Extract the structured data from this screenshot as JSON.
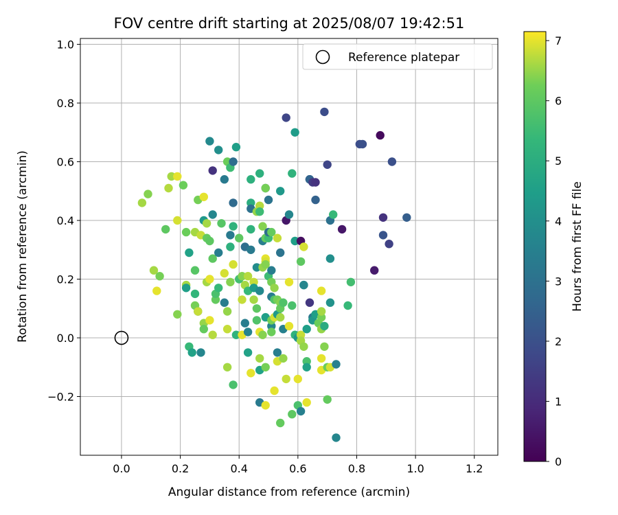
{
  "chart_data": {
    "type": "scatter",
    "title": "FOV centre drift starting at 2025/08/07 19:42:51",
    "xlabel": "Angular distance from reference (arcmin)",
    "ylabel": "Rotation from reference (arcmin)",
    "xlim": [
      -0.14,
      1.28
    ],
    "ylim": [
      -0.4,
      1.02
    ],
    "xticks": [
      "0.0",
      "0.2",
      "0.4",
      "0.6",
      "0.8",
      "1.0",
      "1.2"
    ],
    "xtick_values": [
      0,
      0.2,
      0.4,
      0.6,
      0.8,
      1.0,
      1.2
    ],
    "yticks": [
      "−0.2",
      "0.0",
      "0.2",
      "0.4",
      "0.6",
      "0.8",
      "1.0"
    ],
    "ytick_values": [
      -0.2,
      0,
      0.2,
      0.4,
      0.6,
      0.8,
      1.0
    ],
    "grid": true,
    "legend": {
      "label": "Reference platepar",
      "position": "top-right"
    },
    "reference_point": {
      "x": 0,
      "y": 0
    },
    "colorbar": {
      "label": "Hours from first FF file",
      "range": [
        0,
        7.15
      ],
      "ticks": [
        "0",
        "1",
        "2",
        "3",
        "4",
        "5",
        "6",
        "7"
      ],
      "tick_values": [
        0,
        1,
        2,
        3,
        4,
        5,
        6,
        7
      ],
      "colormap": "viridis"
    },
    "points": [
      [
        0.07,
        0.46,
        6.6
      ],
      [
        0.09,
        0.49,
        6.4
      ],
      [
        0.11,
        0.23,
        6.6
      ],
      [
        0.12,
        0.16,
        7.0
      ],
      [
        0.13,
        0.21,
        6.3
      ],
      [
        0.15,
        0.37,
        6.0
      ],
      [
        0.16,
        0.51,
        6.7
      ],
      [
        0.17,
        0.55,
        6.6
      ],
      [
        0.19,
        0.55,
        7.0
      ],
      [
        0.19,
        0.4,
        6.9
      ],
      [
        0.19,
        0.08,
        6.4
      ],
      [
        0.21,
        0.52,
        6.2
      ],
      [
        0.22,
        0.18,
        6.6
      ],
      [
        0.22,
        0.36,
        6.2
      ],
      [
        0.22,
        0.17,
        4.5
      ],
      [
        0.23,
        0.29,
        4.6
      ],
      [
        0.23,
        -0.03,
        5.4
      ],
      [
        0.24,
        -0.05,
        4.6
      ],
      [
        0.25,
        0.15,
        5.3
      ],
      [
        0.25,
        0.23,
        5.9
      ],
      [
        0.25,
        0.36,
        6.6
      ],
      [
        0.25,
        0.11,
        6.3
      ],
      [
        0.26,
        0.47,
        6.3
      ],
      [
        0.26,
        0.09,
        3.4
      ],
      [
        0.26,
        0.09,
        6.8
      ],
      [
        0.27,
        0.35,
        6.8
      ],
      [
        0.27,
        -0.05,
        3.7
      ],
      [
        0.28,
        0.05,
        6.5
      ],
      [
        0.28,
        0.03,
        6.1
      ],
      [
        0.28,
        0.4,
        4.3
      ],
      [
        0.28,
        0.48,
        7.0
      ],
      [
        0.29,
        0.39,
        6.6
      ],
      [
        0.29,
        0.34,
        6.1
      ],
      [
        0.29,
        0.19,
        6.6
      ],
      [
        0.3,
        0.67,
        3.8
      ],
      [
        0.3,
        0.33,
        6.0
      ],
      [
        0.3,
        0.2,
        7.0
      ],
      [
        0.3,
        0.06,
        7.0
      ],
      [
        0.31,
        0.42,
        3.7
      ],
      [
        0.31,
        0.01,
        6.7
      ],
      [
        0.31,
        0.27,
        6.0
      ],
      [
        0.31,
        0.57,
        1.2
      ],
      [
        0.32,
        0.13,
        6.1
      ],
      [
        0.32,
        0.15,
        5.7
      ],
      [
        0.33,
        0.64,
        4.0
      ],
      [
        0.33,
        0.17,
        5.4
      ],
      [
        0.33,
        0.29,
        3.4
      ],
      [
        0.34,
        0.39,
        5.9
      ],
      [
        0.35,
        0.12,
        3.4
      ],
      [
        0.35,
        0.54,
        3.3
      ],
      [
        0.35,
        0.22,
        6.9
      ],
      [
        0.36,
        0.6,
        6.2
      ],
      [
        0.36,
        0.09,
        6.5
      ],
      [
        0.36,
        0.03,
        6.8
      ],
      [
        0.36,
        -0.1,
        6.6
      ],
      [
        0.37,
        0.31,
        5.1
      ],
      [
        0.37,
        0.35,
        3.3
      ],
      [
        0.37,
        0.58,
        5.5
      ],
      [
        0.37,
        0.19,
        6.4
      ],
      [
        0.38,
        -0.16,
        5.7
      ],
      [
        0.38,
        0.25,
        6.9
      ],
      [
        0.38,
        0.46,
        2.8
      ],
      [
        0.38,
        0.38,
        5.2
      ],
      [
        0.38,
        0.6,
        2.9
      ],
      [
        0.39,
        0.65,
        4.5
      ],
      [
        0.39,
        0.01,
        5.2
      ],
      [
        0.4,
        0.34,
        6.0
      ],
      [
        0.4,
        0.2,
        5.6
      ],
      [
        0.41,
        0.01,
        7.0
      ],
      [
        0.41,
        0.21,
        6.4
      ],
      [
        0.41,
        0.13,
        6.8
      ],
      [
        0.42,
        0.18,
        6.6
      ],
      [
        0.42,
        0.05,
        3.4
      ],
      [
        0.42,
        0.31,
        2.9
      ],
      [
        0.43,
        0.02,
        3.6
      ],
      [
        0.43,
        -0.05,
        4.6
      ],
      [
        0.43,
        0.16,
        5.4
      ],
      [
        0.43,
        0.21,
        6.7
      ],
      [
        0.44,
        0.46,
        5.0
      ],
      [
        0.44,
        0.44,
        3.0
      ],
      [
        0.44,
        0.3,
        3.3
      ],
      [
        0.44,
        0.37,
        5.2
      ],
      [
        0.44,
        0.54,
        5.1
      ],
      [
        0.44,
        -0.12,
        7.0
      ],
      [
        0.45,
        0.19,
        6.8
      ],
      [
        0.45,
        0.13,
        6.6
      ],
      [
        0.45,
        0.17,
        4.4
      ],
      [
        0.46,
        0.1,
        6.0
      ],
      [
        0.46,
        0.06,
        5.8
      ],
      [
        0.46,
        0.43,
        6.5
      ],
      [
        0.46,
        0.24,
        3.9
      ],
      [
        0.47,
        0.45,
        6.7
      ],
      [
        0.47,
        0.02,
        7.0
      ],
      [
        0.47,
        -0.07,
        6.6
      ],
      [
        0.47,
        -0.11,
        4.6
      ],
      [
        0.47,
        -0.22,
        3.3
      ],
      [
        0.47,
        0.16,
        3.8
      ],
      [
        0.47,
        0.43,
        5.5
      ],
      [
        0.47,
        0.56,
        5.1
      ],
      [
        0.48,
        0.38,
        6.4
      ],
      [
        0.48,
        0.33,
        3.4
      ],
      [
        0.48,
        0.01,
        6.4
      ],
      [
        0.48,
        0.24,
        6.5
      ],
      [
        0.49,
        0.34,
        6.1
      ],
      [
        0.49,
        0.27,
        7.0
      ],
      [
        0.49,
        0.26,
        6.9
      ],
      [
        0.49,
        0.25,
        6.4
      ],
      [
        0.49,
        0.07,
        4.5
      ],
      [
        0.49,
        0.51,
        2.5
      ],
      [
        0.49,
        0.51,
        6.3
      ],
      [
        0.49,
        -0.1,
        6.3
      ],
      [
        0.49,
        -0.23,
        7.0
      ],
      [
        0.5,
        0.34,
        5.5
      ],
      [
        0.5,
        0.36,
        2.9
      ],
      [
        0.5,
        0.47,
        3.1
      ],
      [
        0.5,
        0.21,
        5.5
      ],
      [
        0.51,
        0.14,
        3.4
      ],
      [
        0.51,
        0.36,
        6.1
      ],
      [
        0.51,
        0.19,
        6.3
      ],
      [
        0.51,
        0.04,
        3.7
      ],
      [
        0.51,
        0.06,
        6.3
      ],
      [
        0.51,
        0.02,
        6.2
      ],
      [
        0.51,
        0.23,
        3.4
      ],
      [
        0.52,
        0.17,
        6.5
      ],
      [
        0.52,
        0.13,
        5.8
      ],
      [
        0.52,
        0.07,
        6.9
      ],
      [
        0.52,
        -0.18,
        7.0
      ],
      [
        0.53,
        0.13,
        6.3
      ],
      [
        0.53,
        0.08,
        4.3
      ],
      [
        0.53,
        -0.08,
        6.9
      ],
      [
        0.53,
        -0.05,
        3.4
      ],
      [
        0.53,
        0.34,
        6.8
      ],
      [
        0.54,
        0.29,
        3.1
      ],
      [
        0.54,
        0.5,
        4.3
      ],
      [
        0.54,
        0.12,
        6.4
      ],
      [
        0.54,
        0.1,
        6.1
      ],
      [
        0.54,
        0.07,
        6.6
      ],
      [
        0.54,
        -0.29,
        6.1
      ],
      [
        0.55,
        0.03,
        3.5
      ],
      [
        0.55,
        -0.07,
        6.5
      ],
      [
        0.55,
        0.12,
        5.8
      ],
      [
        0.56,
        0.75,
        1.7
      ],
      [
        0.56,
        0.4,
        0.5
      ],
      [
        0.56,
        -0.14,
        6.8
      ],
      [
        0.57,
        0.19,
        7.0
      ],
      [
        0.57,
        0.42,
        3.7
      ],
      [
        0.57,
        0.04,
        7.0
      ],
      [
        0.58,
        0.11,
        5.7
      ],
      [
        0.58,
        0.56,
        5.2
      ],
      [
        0.58,
        -0.26,
        6.0
      ],
      [
        0.59,
        0.7,
        4.4
      ],
      [
        0.59,
        0.33,
        4.5
      ],
      [
        0.59,
        0.01,
        5.2
      ],
      [
        0.6,
        0.0,
        4.2
      ],
      [
        0.6,
        -0.14,
        7.0
      ],
      [
        0.6,
        -0.23,
        5.7
      ],
      [
        0.61,
        0.33,
        0.3
      ],
      [
        0.61,
        0.26,
        6.0
      ],
      [
        0.61,
        0.01,
        6.8
      ],
      [
        0.61,
        -0.01,
        6.6
      ],
      [
        0.61,
        -0.25,
        3.5
      ],
      [
        0.62,
        0.31,
        6.9
      ],
      [
        0.62,
        0.18,
        4.8
      ],
      [
        0.62,
        0.18,
        3.7
      ],
      [
        0.62,
        -0.03,
        6.5
      ],
      [
        0.63,
        0.03,
        4.5
      ],
      [
        0.63,
        -0.08,
        5.7
      ],
      [
        0.63,
        -0.1,
        4.6
      ],
      [
        0.63,
        -0.22,
        7.0
      ],
      [
        0.64,
        0.54,
        2.8
      ],
      [
        0.64,
        0.54,
        1.7
      ],
      [
        0.64,
        0.12,
        1.3
      ],
      [
        0.64,
        0.54,
        2.6
      ],
      [
        0.65,
        0.53,
        1.4
      ],
      [
        0.65,
        0.07,
        3.2
      ],
      [
        0.65,
        0.06,
        4.2
      ],
      [
        0.66,
        0.53,
        1.2
      ],
      [
        0.66,
        0.47,
        2.5
      ],
      [
        0.66,
        0.08,
        4.5
      ],
      [
        0.67,
        0.05,
        6.2
      ],
      [
        0.68,
        0.07,
        6.3
      ],
      [
        0.68,
        0.09,
        6.6
      ],
      [
        0.68,
        0.03,
        6.5
      ],
      [
        0.68,
        0.16,
        7.0
      ],
      [
        0.68,
        -0.07,
        7.0
      ],
      [
        0.68,
        -0.11,
        7.0
      ],
      [
        0.69,
        0.77,
        1.9
      ],
      [
        0.69,
        0.04,
        4.9
      ],
      [
        0.69,
        -0.03,
        6.4
      ],
      [
        0.7,
        0.59,
        1.7
      ],
      [
        0.7,
        -0.1,
        6.2
      ],
      [
        0.7,
        -0.21,
        6.1
      ],
      [
        0.71,
        0.4,
        3.0
      ],
      [
        0.71,
        0.27,
        4.0
      ],
      [
        0.71,
        0.12,
        4.1
      ],
      [
        0.71,
        -0.1,
        6.9
      ],
      [
        0.72,
        0.42,
        5.4
      ],
      [
        0.73,
        -0.09,
        3.5
      ],
      [
        0.73,
        -0.34,
        3.7
      ],
      [
        0.75,
        0.37,
        0.5
      ],
      [
        0.77,
        0.11,
        5.4
      ],
      [
        0.78,
        0.19,
        5.6
      ],
      [
        0.81,
        0.66,
        1.9
      ],
      [
        0.82,
        0.66,
        2.0
      ],
      [
        0.86,
        0.23,
        0.6
      ],
      [
        0.88,
        0.69,
        0.2
      ],
      [
        0.89,
        0.41,
        1.2
      ],
      [
        0.89,
        0.35,
        2.1
      ],
      [
        0.91,
        0.32,
        1.6
      ],
      [
        0.92,
        0.6,
        2.0
      ],
      [
        0.97,
        0.41,
        2.4
      ]
    ]
  }
}
